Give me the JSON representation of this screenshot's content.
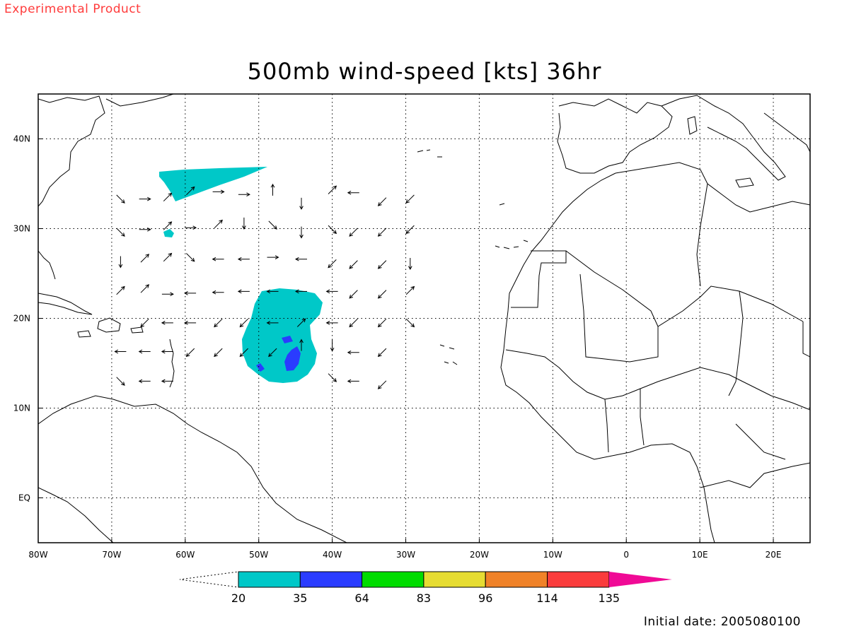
{
  "header": {
    "experimental_label": "Experimental Product",
    "title": "500mb wind-speed [kts] 36hr",
    "initial_date": "Initial date: 2005080100"
  },
  "map": {
    "lon_range": [
      -80,
      25
    ],
    "lat_range": [
      -5,
      45
    ],
    "lon_ticks": [
      {
        "value": -80,
        "label": "80W"
      },
      {
        "value": -70,
        "label": "70W"
      },
      {
        "value": -60,
        "label": "60W"
      },
      {
        "value": -50,
        "label": "50W"
      },
      {
        "value": -40,
        "label": "40W"
      },
      {
        "value": -30,
        "label": "30W"
      },
      {
        "value": -20,
        "label": "20W"
      },
      {
        "value": -10,
        "label": "10W"
      },
      {
        "value": 0,
        "label": "0"
      },
      {
        "value": 10,
        "label": "10E"
      },
      {
        "value": 20,
        "label": "20E"
      }
    ],
    "lat_ticks": [
      {
        "value": 40,
        "label": "40N"
      },
      {
        "value": 30,
        "label": "30N"
      },
      {
        "value": 20,
        "label": "20N"
      },
      {
        "value": 10,
        "label": "10N"
      },
      {
        "value": 0,
        "label": "EQ"
      }
    ],
    "grid": "dotted"
  },
  "colorbar": {
    "levels": [
      "20",
      "35",
      "64",
      "83",
      "96",
      "114",
      "135"
    ],
    "colors": [
      "#00c8c8",
      "#2a3cff",
      "#00dc00",
      "#e6dc32",
      "#f08228",
      "#fa3c3c",
      "#f00a96"
    ]
  },
  "wind_vectors": [
    {
      "lon": -68.8,
      "lat": 33.3,
      "dir": "SE"
    },
    {
      "lon": -65.5,
      "lat": 33.3,
      "dir": "E"
    },
    {
      "lon": -62.4,
      "lat": 33.5,
      "dir": "NE"
    },
    {
      "lon": -59.3,
      "lat": 34.2,
      "dir": "NE"
    },
    {
      "lon": -55.5,
      "lat": 34.1,
      "dir": "E"
    },
    {
      "lon": -52.0,
      "lat": 33.8,
      "dir": "E"
    },
    {
      "lon": -48.1,
      "lat": 34.3,
      "dir": "N"
    },
    {
      "lon": -44.2,
      "lat": 32.8,
      "dir": "S"
    },
    {
      "lon": -40.0,
      "lat": 34.3,
      "dir": "NE"
    },
    {
      "lon": -37.1,
      "lat": 34.0,
      "dir": "W"
    },
    {
      "lon": -33.2,
      "lat": 33.0,
      "dir": "SW"
    },
    {
      "lon": -29.4,
      "lat": 33.3,
      "dir": "SW"
    },
    {
      "lon": -68.8,
      "lat": 29.6,
      "dir": "SE"
    },
    {
      "lon": -65.5,
      "lat": 29.9,
      "dir": "E"
    },
    {
      "lon": -62.4,
      "lat": 30.3,
      "dir": "NE"
    },
    {
      "lon": -59.3,
      "lat": 30.1,
      "dir": "E"
    },
    {
      "lon": -55.5,
      "lat": 30.5,
      "dir": "NE"
    },
    {
      "lon": -52.0,
      "lat": 30.6,
      "dir": "S"
    },
    {
      "lon": -48.1,
      "lat": 30.4,
      "dir": "SE"
    },
    {
      "lon": -44.2,
      "lat": 29.6,
      "dir": "S"
    },
    {
      "lon": -40.0,
      "lat": 29.9,
      "dir": "SE"
    },
    {
      "lon": -37.1,
      "lat": 29.6,
      "dir": "SW"
    },
    {
      "lon": -33.2,
      "lat": 29.6,
      "dir": "SW"
    },
    {
      "lon": -29.4,
      "lat": 29.9,
      "dir": "SW"
    },
    {
      "lon": -68.8,
      "lat": 26.3,
      "dir": "S"
    },
    {
      "lon": -65.5,
      "lat": 26.7,
      "dir": "NE"
    },
    {
      "lon": -62.4,
      "lat": 26.8,
      "dir": "NE"
    },
    {
      "lon": -59.3,
      "lat": 26.8,
      "dir": "SE"
    },
    {
      "lon": -55.5,
      "lat": 26.6,
      "dir": "W"
    },
    {
      "lon": -52.0,
      "lat": 26.6,
      "dir": "W"
    },
    {
      "lon": -48.1,
      "lat": 26.8,
      "dir": "E"
    },
    {
      "lon": -44.2,
      "lat": 26.6,
      "dir": "W"
    },
    {
      "lon": -40.0,
      "lat": 26.1,
      "dir": "SW"
    },
    {
      "lon": -37.1,
      "lat": 26.0,
      "dir": "SW"
    },
    {
      "lon": -33.2,
      "lat": 26.0,
      "dir": "SW"
    },
    {
      "lon": -29.4,
      "lat": 26.1,
      "dir": "S"
    },
    {
      "lon": -68.8,
      "lat": 23.1,
      "dir": "NE"
    },
    {
      "lon": -65.5,
      "lat": 23.3,
      "dir": "NE"
    },
    {
      "lon": -62.4,
      "lat": 22.7,
      "dir": "E"
    },
    {
      "lon": -59.3,
      "lat": 22.8,
      "dir": "W"
    },
    {
      "lon": -55.5,
      "lat": 22.9,
      "dir": "W"
    },
    {
      "lon": -52.0,
      "lat": 23.0,
      "dir": "W"
    },
    {
      "lon": -48.1,
      "lat": 23.0,
      "dir": "W"
    },
    {
      "lon": -44.2,
      "lat": 23.0,
      "dir": "W"
    },
    {
      "lon": -40.0,
      "lat": 23.0,
      "dir": "W"
    },
    {
      "lon": -37.1,
      "lat": 22.7,
      "dir": "SW"
    },
    {
      "lon": -33.2,
      "lat": 22.7,
      "dir": "SW"
    },
    {
      "lon": -29.4,
      "lat": 23.1,
      "dir": "NE"
    },
    {
      "lon": -65.5,
      "lat": 19.5,
      "dir": "SW"
    },
    {
      "lon": -62.4,
      "lat": 19.5,
      "dir": "W"
    },
    {
      "lon": -59.3,
      "lat": 19.5,
      "dir": "W"
    },
    {
      "lon": -55.5,
      "lat": 19.5,
      "dir": "SW"
    },
    {
      "lon": -52.0,
      "lat": 19.5,
      "dir": "SW"
    },
    {
      "lon": -48.1,
      "lat": 19.5,
      "dir": "W"
    },
    {
      "lon": -44.2,
      "lat": 19.5,
      "dir": "NE"
    },
    {
      "lon": -40.0,
      "lat": 19.5,
      "dir": "W"
    },
    {
      "lon": -37.1,
      "lat": 19.5,
      "dir": "SW"
    },
    {
      "lon": -33.2,
      "lat": 19.5,
      "dir": "SW"
    },
    {
      "lon": -29.4,
      "lat": 19.5,
      "dir": "SE"
    },
    {
      "lon": -68.8,
      "lat": 16.3,
      "dir": "W"
    },
    {
      "lon": -65.5,
      "lat": 16.3,
      "dir": "W"
    },
    {
      "lon": -62.4,
      "lat": 16.3,
      "dir": "W"
    },
    {
      "lon": -59.3,
      "lat": 16.2,
      "dir": "SW"
    },
    {
      "lon": -55.5,
      "lat": 16.2,
      "dir": "SW"
    },
    {
      "lon": -52.0,
      "lat": 16.2,
      "dir": "SW"
    },
    {
      "lon": -48.1,
      "lat": 16.2,
      "dir": "SW"
    },
    {
      "lon": -44.2,
      "lat": 17.0,
      "dir": "N"
    },
    {
      "lon": -40.0,
      "lat": 17.0,
      "dir": "S"
    },
    {
      "lon": -37.1,
      "lat": 16.2,
      "dir": "W"
    },
    {
      "lon": -33.2,
      "lat": 16.2,
      "dir": "SW"
    },
    {
      "lon": -68.8,
      "lat": 13.0,
      "dir": "SE"
    },
    {
      "lon": -65.5,
      "lat": 13.0,
      "dir": "W"
    },
    {
      "lon": -62.4,
      "lat": 13.0,
      "dir": "W"
    },
    {
      "lon": -40.0,
      "lat": 13.4,
      "dir": "SE"
    },
    {
      "lon": -37.1,
      "lat": 13.0,
      "dir": "W"
    },
    {
      "lon": -33.2,
      "lat": 12.6,
      "dir": "SW"
    }
  ]
}
